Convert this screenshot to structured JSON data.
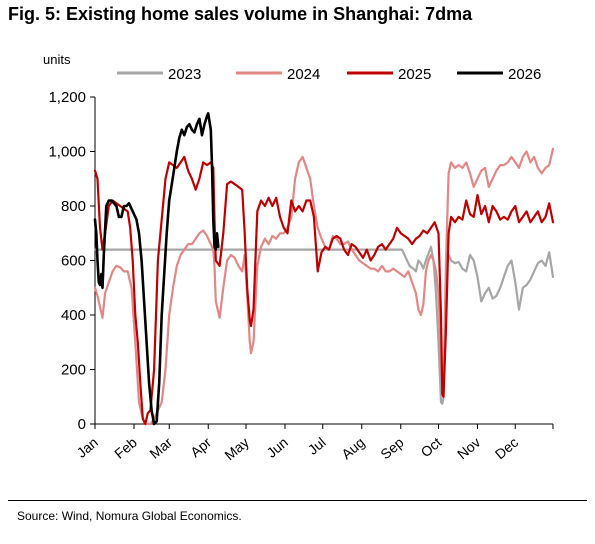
{
  "title": "Fig. 5: Existing home sales volume in Shanghai: 7dma",
  "source": "Source: Wind, Nomura Global Economics.",
  "chart_data": {
    "type": "line",
    "title": "Fig. 5: Existing home sales volume in Shanghai: 7dma",
    "ylabel": "units",
    "xlabel": "",
    "ylim": [
      0,
      1200
    ],
    "yticks": [
      0,
      200,
      400,
      600,
      800,
      1000,
      1200
    ],
    "ytick_labels": [
      "0",
      "200",
      "400",
      "600",
      "800",
      "1,000",
      "1,200"
    ],
    "x_unit": "day of year",
    "xlim": [
      1,
      365
    ],
    "xticks": [
      1,
      32,
      60,
      91,
      121,
      152,
      182,
      213,
      244,
      274,
      305,
      335
    ],
    "xtick_labels": [
      "Jan",
      "Feb",
      "Mar",
      "Apr",
      "May",
      "Jun",
      "Jul",
      "Aug",
      "Sep",
      "Oct",
      "Nov",
      "Dec"
    ],
    "legend_position": "top",
    "grid": false,
    "series": [
      {
        "name": "2023",
        "color": "#a6a6a6",
        "x": [
          1,
          245,
          248,
          251,
          254,
          256,
          258,
          260,
          262,
          264,
          266,
          268,
          270,
          272,
          274,
          276,
          277,
          278,
          280,
          282,
          284,
          287,
          290,
          293,
          296,
          299,
          302,
          305,
          308,
          311,
          314,
          317,
          320,
          323,
          326,
          329,
          332,
          335,
          338,
          341,
          344,
          347,
          350,
          353,
          356,
          359,
          362,
          365
        ],
        "y": [
          640,
          640,
          610,
          580,
          570,
          560,
          600,
          590,
          570,
          600,
          625,
          650,
          600,
          480,
          300,
          80,
          75,
          95,
          550,
          620,
          600,
          590,
          595,
          570,
          560,
          620,
          600,
          540,
          450,
          480,
          500,
          460,
          470,
          500,
          540,
          580,
          600,
          520,
          420,
          500,
          510,
          530,
          560,
          590,
          600,
          580,
          630,
          540
        ]
      },
      {
        "name": "2024",
        "color": "#e38686",
        "x": [
          1,
          3,
          5,
          7,
          9,
          12,
          15,
          18,
          21,
          24,
          27,
          30,
          33,
          36,
          39,
          41,
          43,
          45,
          48,
          51,
          54,
          57,
          60,
          63,
          66,
          69,
          72,
          75,
          78,
          81,
          84,
          87,
          90,
          93,
          95,
          96,
          97,
          100,
          103,
          106,
          109,
          112,
          115,
          118,
          120,
          122,
          124,
          125,
          127,
          130,
          133,
          136,
          139,
          142,
          145,
          148,
          151,
          154,
          157,
          160,
          163,
          166,
          169,
          172,
          175,
          178,
          181,
          184,
          187,
          190,
          193,
          196,
          199,
          202,
          205,
          208,
          211,
          214,
          217,
          220,
          223,
          226,
          229,
          232,
          235,
          238,
          241,
          244,
          247,
          250,
          253,
          256,
          258,
          260,
          262,
          264,
          266,
          268,
          270,
          272,
          274,
          276,
          277,
          278,
          280,
          282,
          284,
          287,
          290,
          293,
          296,
          299,
          302,
          305,
          308,
          311,
          314,
          317,
          320,
          323,
          326,
          329,
          332,
          335,
          338,
          341,
          344,
          347,
          350,
          353,
          356,
          359,
          362,
          365
        ],
        "y": [
          500,
          470,
          430,
          390,
          480,
          520,
          560,
          580,
          575,
          560,
          560,
          500,
          300,
          80,
          20,
          0,
          0,
          0,
          20,
          50,
          80,
          200,
          400,
          500,
          580,
          620,
          640,
          660,
          660,
          680,
          700,
          710,
          690,
          660,
          640,
          580,
          450,
          390,
          500,
          600,
          620,
          610,
          580,
          560,
          620,
          470,
          300,
          260,
          300,
          580,
          650,
          680,
          660,
          690,
          680,
          700,
          700,
          720,
          760,
          900,
          960,
          980,
          940,
          900,
          800,
          720,
          680,
          650,
          640,
          690,
          680,
          660,
          660,
          670,
          640,
          620,
          600,
          590,
          580,
          570,
          570,
          560,
          580,
          560,
          560,
          570,
          560,
          550,
          540,
          560,
          520,
          480,
          420,
          400,
          440,
          560,
          600,
          620,
          600,
          560,
          480,
          250,
          150,
          130,
          600,
          920,
          960,
          940,
          950,
          940,
          960,
          920,
          870,
          900,
          930,
          940,
          870,
          900,
          930,
          950,
          950,
          960,
          980,
          960,
          940,
          980,
          1000,
          960,
          980,
          940,
          920,
          940,
          950,
          1010
        ]
      },
      {
        "name": "2025",
        "color": "#c00000",
        "x": [
          1,
          3,
          5,
          7,
          9,
          12,
          15,
          18,
          21,
          24,
          27,
          29,
          31,
          33,
          35,
          37,
          39,
          41,
          43,
          45,
          48,
          51,
          54,
          57,
          60,
          63,
          66,
          69,
          72,
          75,
          78,
          81,
          84,
          87,
          90,
          93,
          95,
          96,
          97,
          100,
          103,
          106,
          109,
          112,
          115,
          118,
          120,
          122,
          124,
          125,
          127,
          130,
          133,
          136,
          139,
          142,
          145,
          148,
          151,
          154,
          157,
          160,
          163,
          166,
          169,
          172,
          175,
          178,
          181,
          184,
          187,
          190,
          193,
          196,
          199,
          202,
          205,
          208,
          211,
          214,
          217,
          220,
          223,
          226,
          229,
          232,
          235,
          238,
          241,
          244,
          247,
          250,
          253,
          256,
          259,
          262,
          265,
          268,
          271,
          274,
          276,
          277,
          278,
          280,
          282,
          284,
          287,
          290,
          293,
          296,
          299,
          302,
          305,
          308,
          311,
          314,
          317,
          320,
          323,
          326,
          329,
          332,
          335,
          338,
          341,
          344,
          347,
          350,
          353,
          356,
          359,
          362,
          365
        ],
        "y": [
          930,
          900,
          720,
          640,
          700,
          800,
          820,
          810,
          800,
          790,
          780,
          720,
          600,
          400,
          300,
          150,
          20,
          0,
          40,
          50,
          200,
          600,
          750,
          900,
          960,
          950,
          940,
          960,
          980,
          930,
          900,
          860,
          900,
          960,
          950,
          960,
          940,
          750,
          600,
          580,
          700,
          880,
          890,
          880,
          870,
          860,
          700,
          500,
          380,
          360,
          420,
          780,
          820,
          800,
          830,
          800,
          830,
          760,
          720,
          700,
          820,
          780,
          800,
          780,
          820,
          820,
          760,
          560,
          630,
          650,
          640,
          680,
          690,
          680,
          640,
          620,
          660,
          650,
          630,
          610,
          640,
          600,
          620,
          650,
          660,
          640,
          660,
          680,
          720,
          700,
          690,
          680,
          660,
          680,
          690,
          710,
          700,
          720,
          740,
          700,
          400,
          110,
          100,
          350,
          700,
          760,
          740,
          760,
          750,
          820,
          770,
          760,
          840,
          770,
          800,
          740,
          800,
          780,
          750,
          760,
          750,
          780,
          800,
          740,
          760,
          780,
          740,
          760,
          780,
          740,
          760,
          810,
          740
        ]
      },
      {
        "name": "2026",
        "color": "#000000",
        "x": [
          1,
          2,
          3,
          4,
          5,
          6,
          7,
          8,
          10,
          12,
          14,
          16,
          18,
          20,
          22,
          24,
          26,
          28,
          30,
          32,
          34,
          36,
          38,
          40,
          42,
          44,
          46,
          48,
          50,
          52,
          54,
          56,
          58,
          60,
          62,
          64,
          66,
          68,
          70,
          72,
          74,
          76,
          78,
          80,
          82,
          84,
          86,
          88,
          90,
          91,
          92,
          93,
          94,
          95,
          96,
          97,
          98,
          99
        ],
        "y": [
          750,
          700,
          600,
          520,
          510,
          550,
          500,
          620,
          800,
          820,
          820,
          810,
          800,
          760,
          760,
          800,
          800,
          810,
          790,
          770,
          750,
          700,
          600,
          450,
          300,
          150,
          50,
          0,
          10,
          150,
          400,
          550,
          700,
          820,
          880,
          940,
          1000,
          1050,
          1080,
          1060,
          1090,
          1100,
          1080,
          1070,
          1100,
          1120,
          1060,
          1100,
          1130,
          1140,
          1110,
          1080,
          950,
          750,
          650,
          640,
          700,
          650
        ]
      }
    ]
  }
}
